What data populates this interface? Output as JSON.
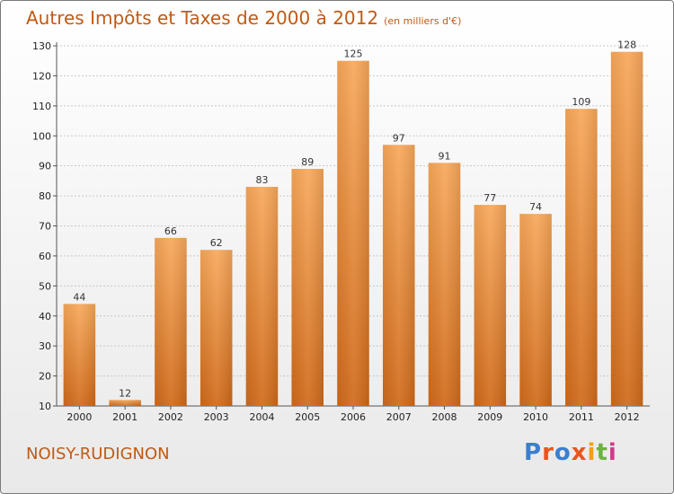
{
  "header": {
    "title": "Autres Impôts et Taxes de 2000 à 2012",
    "unit": "(en milliers d'€)"
  },
  "footer": {
    "location": "NOISY-RUDIGNON",
    "logo": "Proxiti"
  },
  "colors": {
    "accent": "#c15a14",
    "bar_top": "#f8a85a",
    "bar_bottom": "#d06a1a"
  },
  "chart_data": {
    "type": "bar",
    "title": "Autres Impôts et Taxes de 2000 à 2012",
    "xlabel": "",
    "ylabel": "",
    "categories": [
      "2000",
      "2001",
      "2002",
      "2003",
      "2004",
      "2005",
      "2006",
      "2007",
      "2008",
      "2009",
      "2010",
      "2011",
      "2012"
    ],
    "values": [
      44,
      12,
      66,
      62,
      83,
      89,
      125,
      97,
      91,
      77,
      74,
      109,
      128
    ],
    "ylim": [
      10,
      130
    ],
    "yticks": [
      10,
      20,
      30,
      40,
      50,
      60,
      70,
      80,
      90,
      100,
      110,
      120,
      130
    ],
    "grid": true
  }
}
